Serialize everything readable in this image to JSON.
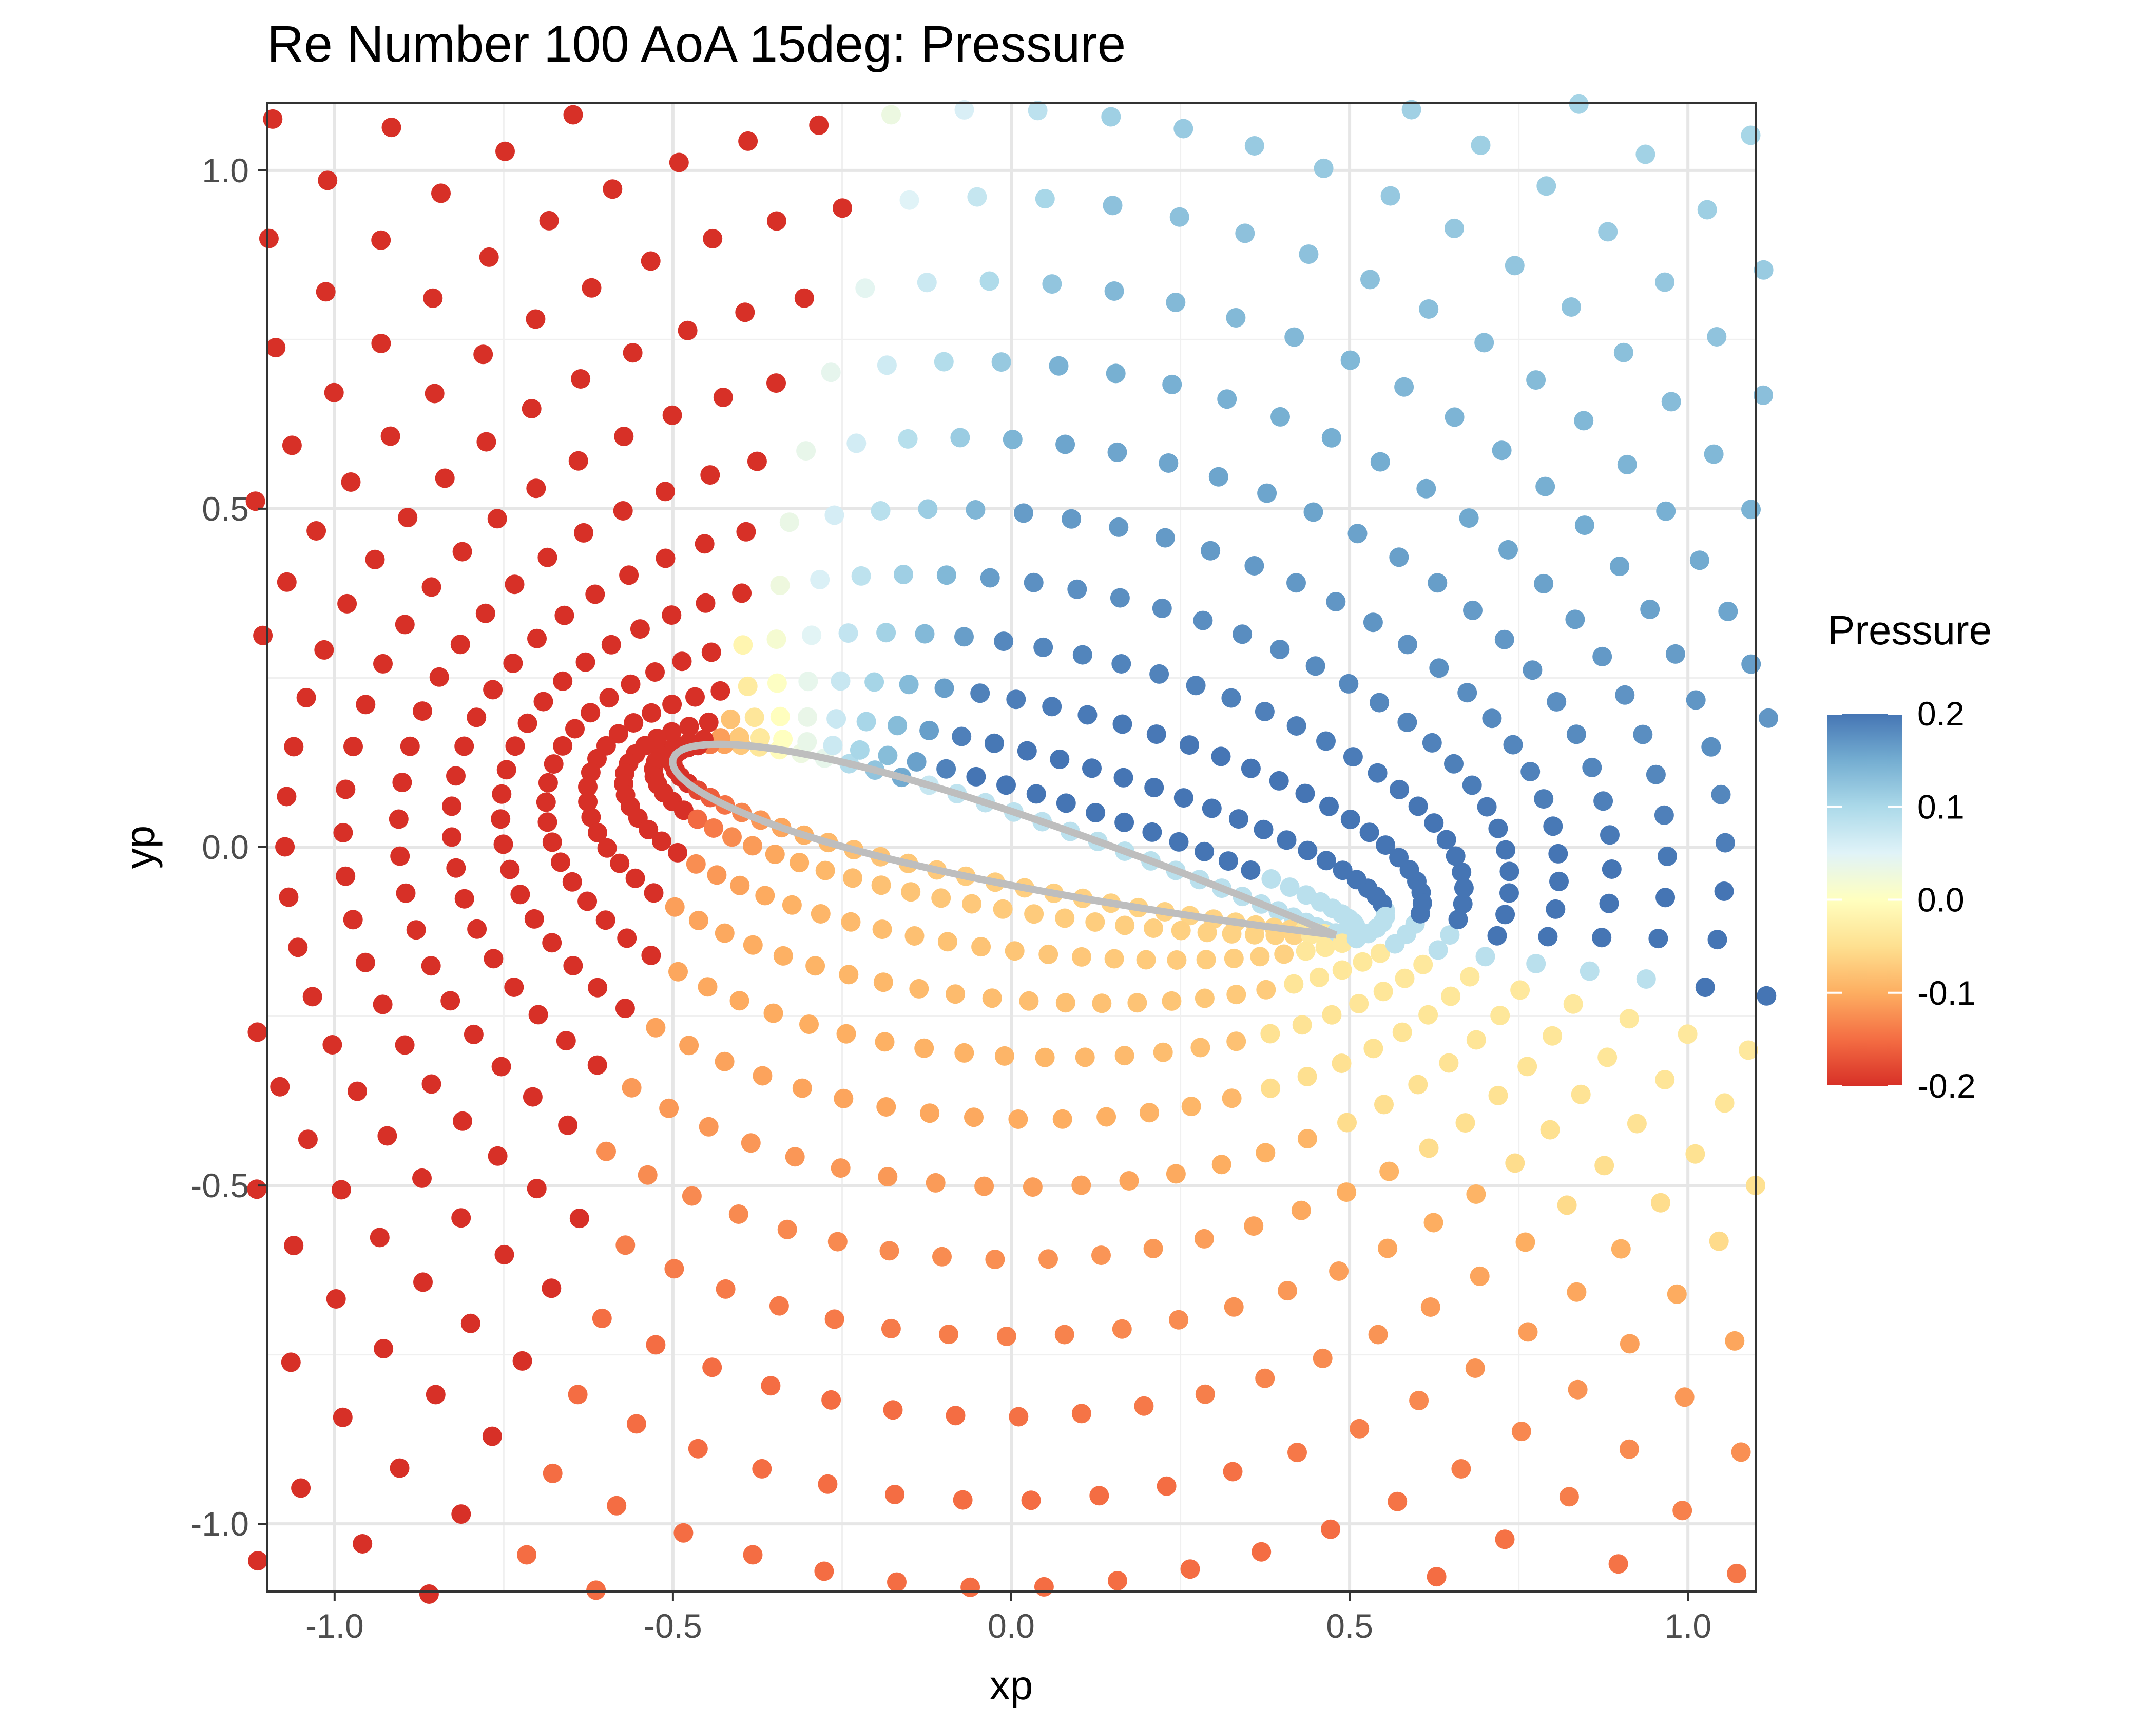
{
  "chart_data": {
    "type": "scatter",
    "title": "Re Number 100 AoA 15deg: Pressure",
    "xlabel": "xp",
    "ylabel": "yp",
    "xlim": [
      -1.1,
      1.1
    ],
    "ylim": [
      -1.1,
      1.1
    ],
    "x_ticks": [
      "-1.0",
      "-0.5",
      "0.0",
      "0.5",
      "1.0"
    ],
    "x_tick_values": [
      -1.0,
      -0.5,
      0.0,
      0.5,
      1.0
    ],
    "y_ticks": [
      "-1.0",
      "-0.5",
      "0.0",
      "0.5",
      "1.0"
    ],
    "y_tick_values": [
      -1.0,
      -0.5,
      0.0,
      0.5,
      1.0
    ],
    "grid": true,
    "legend": {
      "title": "Pressure",
      "position": "right",
      "range": [
        -0.2,
        0.2
      ],
      "labels": [
        "0.2",
        "0.1",
        "0.0",
        "-0.1",
        "-0.2"
      ],
      "label_values": [
        0.2,
        0.1,
        0.0,
        -0.1,
        -0.2
      ],
      "colors": [
        "#d73027",
        "#f46d43",
        "#fdae61",
        "#fee090",
        "#ffffbf",
        "#e0f3f8",
        "#abd9e9",
        "#74add1",
        "#4575b4"
      ]
    },
    "airfoil": {
      "color": "#bebebe",
      "leading_edge": [
        -0.5,
        0.13
      ],
      "trailing_edge": [
        0.48,
        -0.13
      ],
      "thickness": 0.12,
      "max_thickness_location": 0.3
    },
    "grid_points": {
      "description": "O-grid of points around airfoil, colored by pressure",
      "radial_layers": 16,
      "points_per_layer": 72
    }
  }
}
